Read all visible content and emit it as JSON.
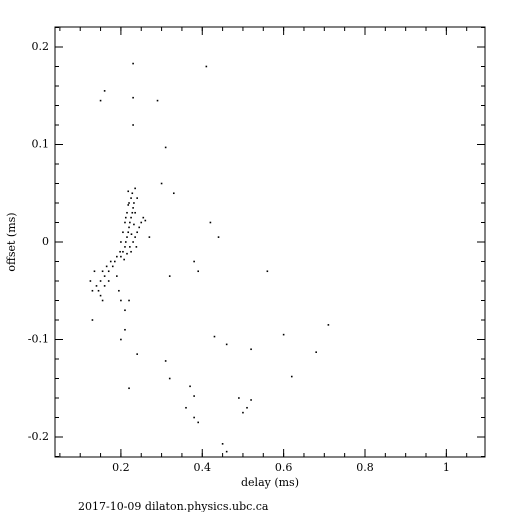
{
  "chart_data": {
    "type": "scatter",
    "xlabel": "delay (ms)",
    "ylabel": "offset (ms)",
    "footer": "2017-10-09  dilaton.physics.ubc.ca",
    "xlim": [
      0.038,
      1.095
    ],
    "ylim": [
      -0.2205,
      0.2205
    ],
    "xticks": [
      0.2,
      0.4,
      0.6,
      0.8,
      1
    ],
    "yticks": [
      -0.2,
      -0.1,
      0,
      0.1,
      0.2
    ],
    "color": "#000000",
    "x": [
      0.205,
      0.21,
      0.212,
      0.215,
      0.218,
      0.22,
      0.222,
      0.225,
      0.228,
      0.23,
      0.232,
      0.225,
      0.228,
      0.22,
      0.215,
      0.21,
      0.205,
      0.2,
      0.198,
      0.2,
      0.208,
      0.215,
      0.222,
      0.23,
      0.235,
      0.24,
      0.245,
      0.25,
      0.255,
      0.26,
      0.238,
      0.225,
      0.218,
      0.212,
      0.235,
      0.24,
      0.235,
      0.218,
      0.226,
      0.232,
      0.14,
      0.15,
      0.155,
      0.16,
      0.165,
      0.17,
      0.175,
      0.18,
      0.185,
      0.19,
      0.145,
      0.15,
      0.155,
      0.13,
      0.125,
      0.16,
      0.17,
      0.135,
      0.195,
      0.2,
      0.21,
      0.22,
      0.19,
      0.15,
      0.16,
      0.23,
      0.23,
      0.29,
      0.41,
      0.23,
      0.31,
      0.33,
      0.3,
      0.42,
      0.44,
      0.38,
      0.39,
      0.56,
      0.6,
      0.71,
      0.68,
      0.52,
      0.46,
      0.43,
      0.31,
      0.32,
      0.37,
      0.38,
      0.36,
      0.38,
      0.39,
      0.49,
      0.51,
      0.5,
      0.52,
      0.62,
      0.45,
      0.46,
      0.22,
      0.2,
      0.21,
      0.24,
      0.13,
      0.32,
      0.27
    ],
    "y": [
      -0.01,
      -0.005,
      0.0,
      0.005,
      0.01,
      0.015,
      0.02,
      0.025,
      0.03,
      0.035,
      0.04,
      0.045,
      0.05,
      0.04,
      0.03,
      0.02,
      0.01,
      0.0,
      -0.01,
      -0.015,
      -0.018,
      -0.012,
      -0.005,
      0.0,
      0.005,
      0.01,
      0.015,
      0.02,
      0.025,
      0.022,
      -0.005,
      -0.01,
      0.038,
      0.025,
      0.03,
      0.045,
      0.055,
      0.052,
      0.008,
      0.018,
      -0.045,
      -0.04,
      -0.03,
      -0.035,
      -0.025,
      -0.03,
      -0.02,
      -0.025,
      -0.02,
      -0.015,
      -0.05,
      -0.055,
      -0.06,
      -0.05,
      -0.04,
      -0.045,
      -0.04,
      -0.03,
      -0.05,
      -0.06,
      -0.07,
      -0.06,
      -0.035,
      0.145,
      0.155,
      0.183,
      0.148,
      0.145,
      0.18,
      0.12,
      0.097,
      0.05,
      0.06,
      0.02,
      0.005,
      -0.02,
      -0.03,
      -0.03,
      -0.095,
      -0.085,
      -0.113,
      -0.11,
      -0.105,
      -0.097,
      -0.122,
      -0.14,
      -0.148,
      -0.158,
      -0.17,
      -0.18,
      -0.185,
      -0.16,
      -0.17,
      -0.175,
      -0.162,
      -0.138,
      -0.207,
      -0.215,
      -0.15,
      -0.1,
      -0.09,
      -0.115,
      -0.08,
      -0.035,
      0.005
    ]
  }
}
